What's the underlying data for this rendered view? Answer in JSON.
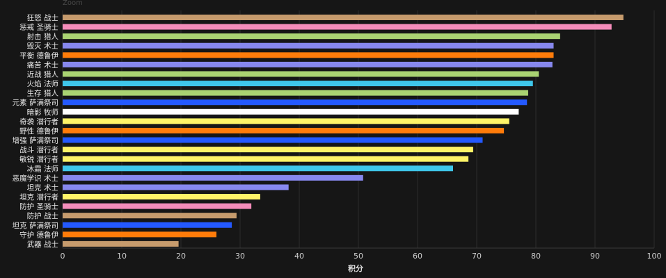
{
  "zoom_label": "Zoom",
  "chart_data": {
    "type": "bar",
    "orientation": "horizontal",
    "title": "",
    "xlabel": "积分",
    "ylabel": "",
    "xlim": [
      0,
      100
    ],
    "xticks": [
      0,
      10,
      20,
      30,
      40,
      50,
      60,
      70,
      80,
      90,
      100
    ],
    "grid": true,
    "categories": [
      "狂怒 战士",
      "惩戒 圣骑士",
      "射击 猎人",
      "毁灭 术士",
      "平衡 德鲁伊",
      "痛苦 术士",
      "近战 猎人",
      "火焰 法师",
      "生存 猎人",
      "元素 萨满祭司",
      "暗影 牧师",
      "奇袭 潜行者",
      "野性 德鲁伊",
      "增强 萨满祭司",
      "战斗 潜行者",
      "敏锐 潜行者",
      "冰霜 法师",
      "恶魔学识 术士",
      "坦克 术士",
      "坦克 潜行者",
      "防护 圣骑士",
      "防护 战士",
      "坦克 萨满祭司",
      "守护 德鲁伊",
      "武器 战士"
    ],
    "values": [
      94.8,
      92.8,
      84.1,
      83.0,
      83.0,
      82.8,
      80.5,
      79.5,
      78.7,
      78.5,
      77.1,
      75.5,
      74.6,
      71.0,
      69.4,
      68.6,
      66.0,
      50.8,
      38.2,
      33.4,
      31.9,
      29.4,
      28.6,
      26.0,
      19.6
    ],
    "colors": [
      "#C69B6D",
      "#F48CBA",
      "#AAD372",
      "#8788EE",
      "#FF7C0A",
      "#8788EE",
      "#AAD372",
      "#3FC7EB",
      "#AAD372",
      "#2459FF",
      "#FFFFFF",
      "#FFF468",
      "#FF7C0A",
      "#2459FF",
      "#FFF468",
      "#FFF468",
      "#3FC7EB",
      "#8788EE",
      "#8788EE",
      "#FFF468",
      "#F48CBA",
      "#C69B6D",
      "#2459FF",
      "#FF7C0A",
      "#C69B6D"
    ],
    "background": "#161616",
    "grid_color": "#2c2c2c"
  }
}
